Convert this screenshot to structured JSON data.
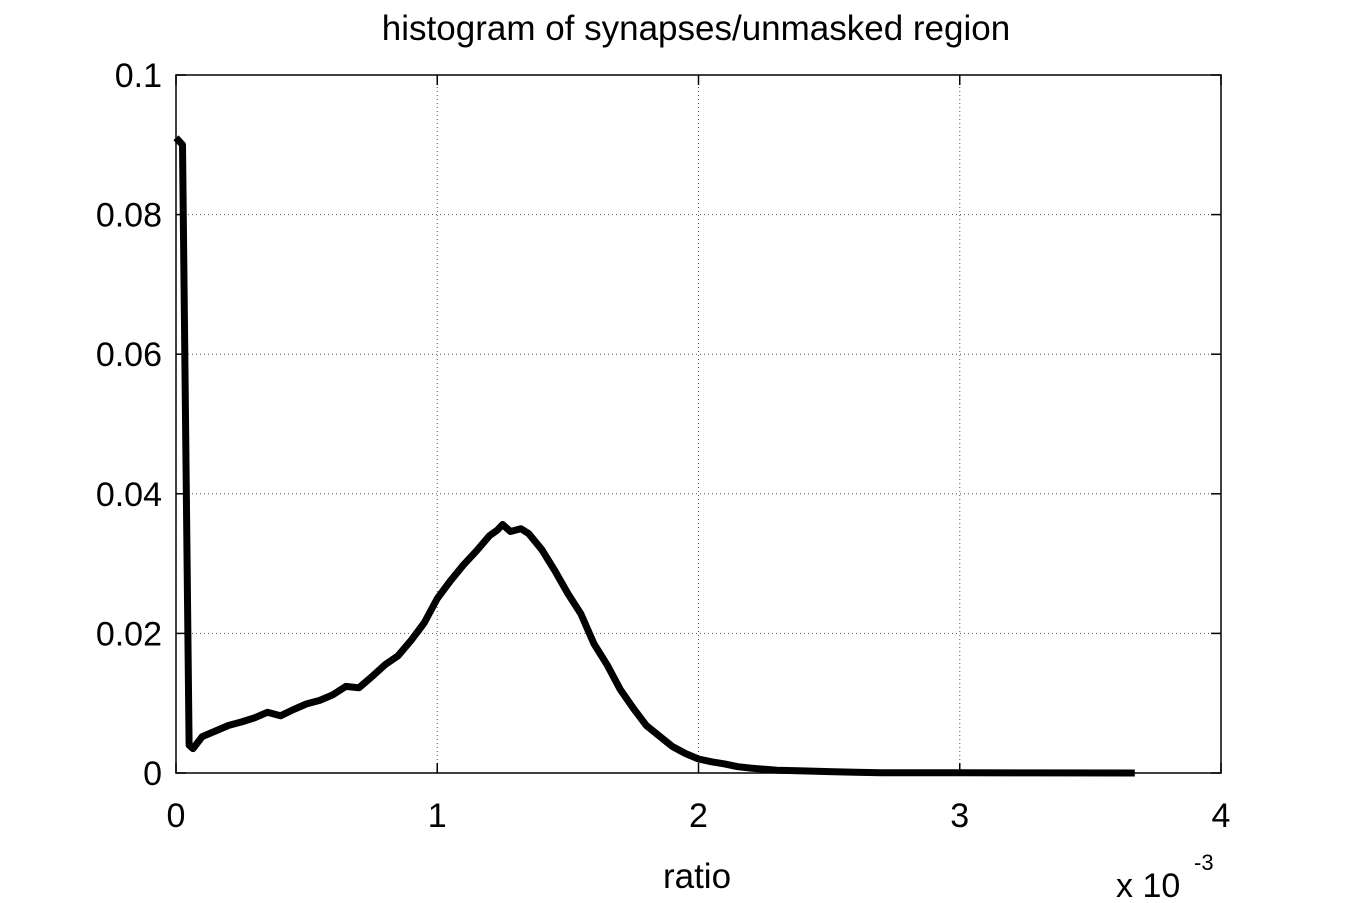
{
  "chart_data": {
    "type": "line",
    "title": "histogram of synapses/unmasked region",
    "xlabel": "ratio",
    "ylabel": "",
    "x_multiplier_label": "x 10",
    "x_multiplier_exponent": "-3",
    "xlim": [
      0,
      4
    ],
    "ylim": [
      0,
      0.1
    ],
    "xticks": [
      0,
      1,
      2,
      3,
      4
    ],
    "xtick_labels": [
      "0",
      "1",
      "2",
      "3",
      "4"
    ],
    "yticks": [
      0,
      0.02,
      0.04,
      0.06,
      0.08,
      0.1
    ],
    "ytick_labels": [
      "0",
      "0.02",
      "0.04",
      "0.06",
      "0.08",
      "0.1"
    ],
    "grid": true,
    "legend": "none",
    "line_color": "#000000",
    "series": [
      {
        "x": [
          0.0,
          0.025,
          0.05,
          0.065,
          0.1,
          0.15,
          0.2,
          0.25,
          0.3,
          0.35,
          0.4,
          0.45,
          0.5,
          0.55,
          0.6,
          0.65,
          0.7,
          0.75,
          0.8,
          0.85,
          0.9,
          0.95,
          1.0,
          1.05,
          1.1,
          1.15,
          1.2,
          1.23,
          1.25,
          1.28,
          1.32,
          1.35,
          1.4,
          1.45,
          1.5,
          1.55,
          1.6,
          1.65,
          1.7,
          1.75,
          1.8,
          1.85,
          1.9,
          1.95,
          2.0,
          2.05,
          2.1,
          2.15,
          2.2,
          2.3,
          2.4,
          2.5,
          2.6,
          2.7,
          3.0,
          3.3,
          3.67
        ],
        "y": [
          0.091,
          0.09,
          0.004,
          0.0035,
          0.0052,
          0.006,
          0.0068,
          0.0073,
          0.0079,
          0.0087,
          0.0082,
          0.0091,
          0.0099,
          0.0104,
          0.0112,
          0.0124,
          0.0122,
          0.0138,
          0.0155,
          0.0168,
          0.019,
          0.0215,
          0.025,
          0.0275,
          0.0298,
          0.0318,
          0.034,
          0.0348,
          0.0356,
          0.0346,
          0.035,
          0.0343,
          0.032,
          0.029,
          0.0257,
          0.0228,
          0.0185,
          0.0155,
          0.012,
          0.0093,
          0.0068,
          0.0053,
          0.0038,
          0.0028,
          0.002,
          0.0016,
          0.0013,
          0.0009,
          0.0007,
          0.0004,
          0.0003,
          0.0002,
          0.0001,
          5e-05,
          3e-05,
          2e-05,
          0.0
        ]
      }
    ]
  }
}
